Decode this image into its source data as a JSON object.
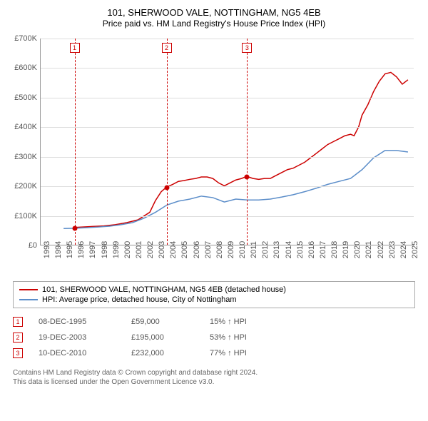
{
  "title": "101, SHERWOOD VALE, NOTTINGHAM, NG5 4EB",
  "subtitle": "Price paid vs. HM Land Registry's House Price Index (HPI)",
  "chart": {
    "type": "line",
    "x_min": 1993,
    "x_max": 2025.5,
    "y_min": 0,
    "y_max": 700000,
    "y_tick_step": 100000,
    "y_tick_prefix": "£",
    "y_tick_suffix": "K",
    "x_ticks": [
      1993,
      1994,
      1995,
      1996,
      1997,
      1998,
      1999,
      2000,
      2001,
      2002,
      2003,
      2004,
      2005,
      2006,
      2007,
      2008,
      2009,
      2010,
      2011,
      2012,
      2013,
      2014,
      2015,
      2016,
      2017,
      2018,
      2019,
      2020,
      2021,
      2022,
      2023,
      2024,
      2025
    ],
    "grid_color": "#dddddd",
    "axis_color": "#999999",
    "background_color": "#ffffff",
    "label_fontsize": 11,
    "label_color": "#555555",
    "line_width": 1.5,
    "series": [
      {
        "id": "property",
        "label": "101, SHERWOOD VALE, NOTTINGHAM, NG5 4EB (detached house)",
        "color": "#cc0000",
        "data": [
          [
            1995.95,
            59000
          ],
          [
            1996.5,
            60000
          ],
          [
            1997.5,
            62000
          ],
          [
            1998.5,
            64000
          ],
          [
            1999.5,
            68000
          ],
          [
            2000.5,
            75000
          ],
          [
            2001.5,
            85000
          ],
          [
            2002.5,
            110000
          ],
          [
            2003.0,
            150000
          ],
          [
            2003.5,
            180000
          ],
          [
            2003.95,
            195000
          ],
          [
            2004.5,
            205000
          ],
          [
            2005.0,
            215000
          ],
          [
            2005.5,
            218000
          ],
          [
            2006.0,
            222000
          ],
          [
            2006.5,
            225000
          ],
          [
            2007.0,
            230000
          ],
          [
            2007.5,
            230000
          ],
          [
            2008.0,
            225000
          ],
          [
            2008.5,
            210000
          ],
          [
            2009.0,
            200000
          ],
          [
            2009.5,
            210000
          ],
          [
            2010.0,
            220000
          ],
          [
            2010.5,
            225000
          ],
          [
            2010.95,
            232000
          ],
          [
            2011.5,
            225000
          ],
          [
            2012.0,
            222000
          ],
          [
            2012.5,
            225000
          ],
          [
            2013.0,
            225000
          ],
          [
            2013.5,
            235000
          ],
          [
            2014.0,
            245000
          ],
          [
            2014.5,
            255000
          ],
          [
            2015.0,
            260000
          ],
          [
            2015.5,
            270000
          ],
          [
            2016.0,
            280000
          ],
          [
            2016.5,
            295000
          ],
          [
            2017.0,
            310000
          ],
          [
            2017.5,
            325000
          ],
          [
            2018.0,
            340000
          ],
          [
            2018.5,
            350000
          ],
          [
            2019.0,
            360000
          ],
          [
            2019.5,
            370000
          ],
          [
            2020.0,
            375000
          ],
          [
            2020.3,
            370000
          ],
          [
            2020.7,
            400000
          ],
          [
            2021.0,
            440000
          ],
          [
            2021.5,
            475000
          ],
          [
            2022.0,
            520000
          ],
          [
            2022.5,
            555000
          ],
          [
            2023.0,
            580000
          ],
          [
            2023.5,
            585000
          ],
          [
            2024.0,
            570000
          ],
          [
            2024.5,
            545000
          ],
          [
            2025.0,
            560000
          ]
        ]
      },
      {
        "id": "hpi",
        "label": "HPI: Average price, detached house, City of Nottingham",
        "color": "#5b8dc9",
        "data": [
          [
            1995.0,
            55000
          ],
          [
            1996.0,
            56000
          ],
          [
            1997.0,
            58000
          ],
          [
            1998.0,
            60000
          ],
          [
            1999.0,
            63000
          ],
          [
            2000.0,
            68000
          ],
          [
            2001.0,
            75000
          ],
          [
            2002.0,
            90000
          ],
          [
            2003.0,
            110000
          ],
          [
            2004.0,
            135000
          ],
          [
            2005.0,
            148000
          ],
          [
            2006.0,
            155000
          ],
          [
            2007.0,
            165000
          ],
          [
            2008.0,
            160000
          ],
          [
            2009.0,
            145000
          ],
          [
            2010.0,
            155000
          ],
          [
            2011.0,
            152000
          ],
          [
            2012.0,
            152000
          ],
          [
            2013.0,
            155000
          ],
          [
            2014.0,
            162000
          ],
          [
            2015.0,
            170000
          ],
          [
            2016.0,
            180000
          ],
          [
            2017.0,
            192000
          ],
          [
            2018.0,
            205000
          ],
          [
            2019.0,
            215000
          ],
          [
            2020.0,
            225000
          ],
          [
            2021.0,
            255000
          ],
          [
            2022.0,
            295000
          ],
          [
            2023.0,
            320000
          ],
          [
            2024.0,
            320000
          ],
          [
            2025.0,
            315000
          ]
        ]
      }
    ],
    "markers": [
      {
        "n": "1",
        "date_x": 1995.95,
        "price_y": 59000
      },
      {
        "n": "2",
        "date_x": 2003.95,
        "price_y": 195000
      },
      {
        "n": "3",
        "date_x": 2010.95,
        "price_y": 232000
      }
    ],
    "marker_line_color": "#cc0000",
    "marker_box_border": "#cc0000",
    "marker_box_text": "#cc0000",
    "marker_dot_color": "#cc0000"
  },
  "legend": {
    "border_color": "#aaaaaa",
    "items": [
      {
        "series": "property",
        "label": "101, SHERWOOD VALE, NOTTINGHAM, NG5 4EB (detached house)",
        "color": "#cc0000"
      },
      {
        "series": "hpi",
        "label": "HPI: Average price, detached house, City of Nottingham",
        "color": "#5b8dc9"
      }
    ]
  },
  "sales": [
    {
      "n": "1",
      "date": "08-DEC-1995",
      "price": "£59,000",
      "delta": "15% ↑ HPI"
    },
    {
      "n": "2",
      "date": "19-DEC-2003",
      "price": "£195,000",
      "delta": "53% ↑ HPI"
    },
    {
      "n": "3",
      "date": "10-DEC-2010",
      "price": "£232,000",
      "delta": "77% ↑ HPI"
    }
  ],
  "footer": {
    "line1": "Contains HM Land Registry data © Crown copyright and database right 2024.",
    "line2": "This data is licensed under the Open Government Licence v3.0."
  }
}
